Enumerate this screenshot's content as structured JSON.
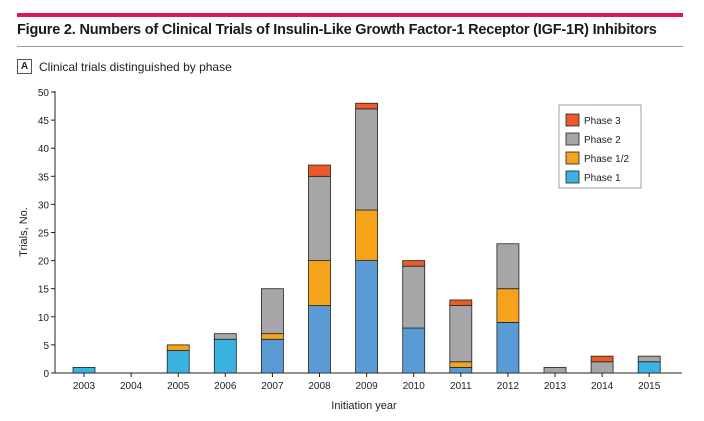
{
  "figure": {
    "title": "Figure 2. Numbers of Clinical Trials of Insulin-Like Growth Factor-1 Receptor (IGF-1R) Inhibitors",
    "panel_letter": "A",
    "panel_title": "Clinical trials distinguished by phase"
  },
  "chart_data": {
    "type": "bar",
    "stacked": true,
    "title": "",
    "xlabel": "Initiation year",
    "ylabel": "Trials, No.",
    "ylim": [
      0,
      50
    ],
    "yticks": [
      0,
      5,
      10,
      15,
      20,
      25,
      30,
      35,
      40,
      45,
      50
    ],
    "grid": false,
    "legend_position": "top-right",
    "categories": [
      "2003",
      "2004",
      "2005",
      "2006",
      "2007",
      "2008",
      "2009",
      "2010",
      "2011",
      "2012",
      "2013",
      "2014",
      "2015"
    ],
    "series": [
      {
        "name": "Phase 1",
        "color": "#5b9bd5",
        "values": [
          1,
          0,
          4,
          6,
          6,
          12,
          20,
          8,
          1,
          9,
          0,
          0,
          2
        ]
      },
      {
        "name": "Phase 1/2",
        "color": "#f7a21b",
        "values": [
          0,
          0,
          1,
          0,
          1,
          8,
          9,
          0,
          1,
          6,
          0,
          0,
          0
        ]
      },
      {
        "name": "Phase 2",
        "color": "#a6a6a8",
        "values": [
          0,
          0,
          0,
          1,
          8,
          15,
          18,
          11,
          10,
          8,
          1,
          2,
          1
        ]
      },
      {
        "name": "Phase 3",
        "color": "#ea5a2a",
        "values": [
          0,
          0,
          0,
          0,
          0,
          2,
          1,
          1,
          1,
          0,
          0,
          1,
          0
        ]
      }
    ],
    "legend_order": [
      "Phase 3",
      "Phase 2",
      "Phase 1/2",
      "Phase 1"
    ],
    "highlight_color": "#3bb3e0"
  }
}
